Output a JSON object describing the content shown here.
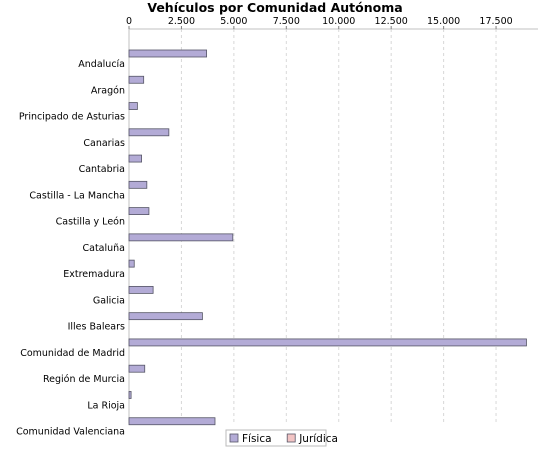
{
  "chart_data": {
    "type": "bar",
    "orientation": "horizontal",
    "title": "Vehículos por Comunidad Autónoma",
    "xlim": [
      0,
      19500
    ],
    "x_ticks": [
      0,
      2500,
      5000,
      7500,
      10000,
      12500,
      15000,
      17500
    ],
    "x_tick_labels": [
      "0",
      "2.500",
      "5.000",
      "7.500",
      "10.000",
      "12.500",
      "15.000",
      "17.500"
    ],
    "x_axis_position": "top",
    "grid": "vertical dashed",
    "legend_position": "bottom-center",
    "categories": [
      "Andalucía",
      "Aragón",
      "Principado de Asturias",
      "Canarias",
      "Cantabria",
      "Castilla - La Mancha",
      "Castilla y León",
      "Cataluña",
      "Extremadura",
      "Galicia",
      "Illes Balears",
      "Comunidad de Madrid",
      "Región de Murcia",
      "La Rioja",
      "Comunidad Valenciana"
    ],
    "series": [
      {
        "name": "Física",
        "color": "#b3abd6",
        "values": [
          3700,
          700,
          400,
          1900,
          600,
          850,
          950,
          4950,
          250,
          1150,
          3500,
          18950,
          750,
          100,
          4100
        ]
      },
      {
        "name": "Jurídica",
        "color": "#f2c4c4",
        "values": [
          0,
          0,
          0,
          0,
          0,
          0,
          0,
          0,
          0,
          0,
          0,
          0,
          0,
          0,
          0
        ]
      }
    ]
  }
}
